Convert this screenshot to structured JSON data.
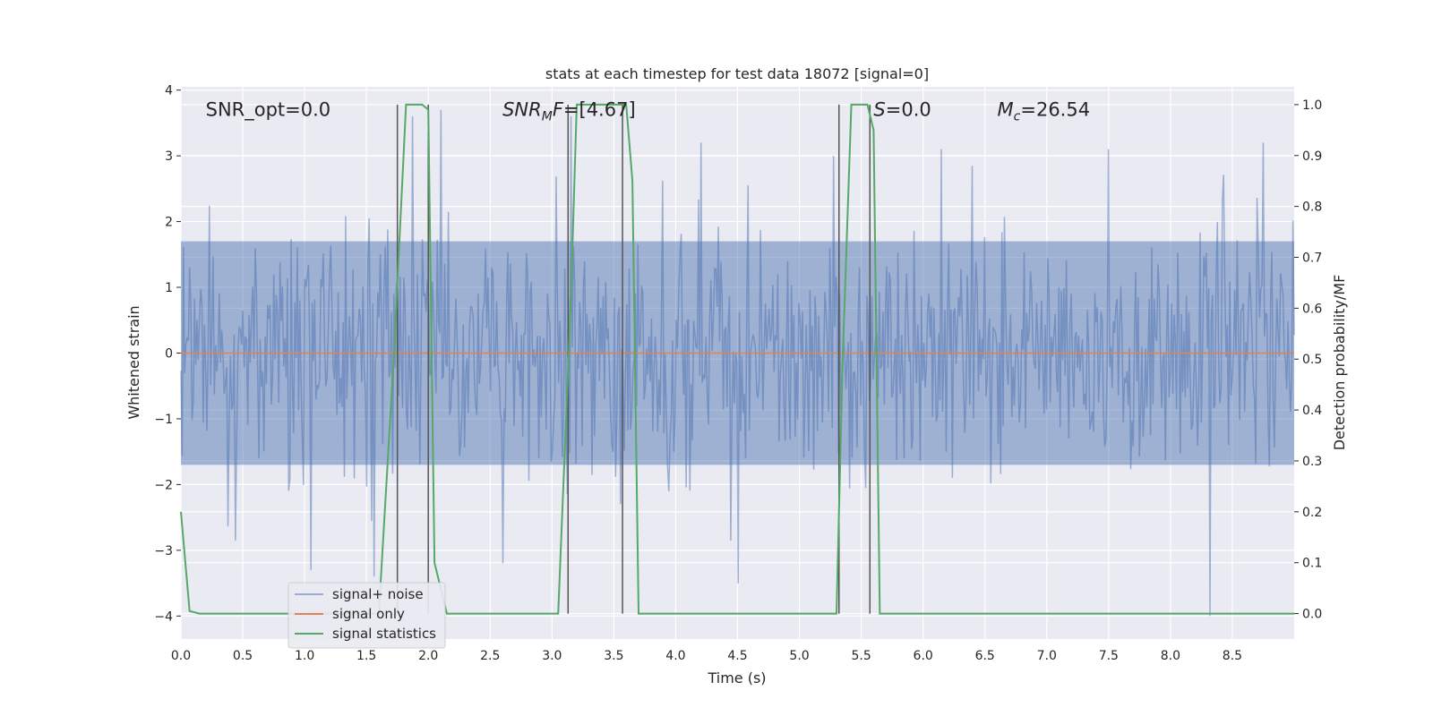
{
  "chart_data": {
    "type": "line",
    "title": "stats at each timestep for test data 18072 [signal=0]",
    "xlabel": "Time (s)",
    "ylabel": "Whitened strain",
    "y2label": "Detection probability/MF",
    "xlim": [
      0,
      9.0
    ],
    "ylim": [
      -4.35,
      4.05
    ],
    "y2lim": [
      -0.05,
      1.035
    ],
    "x_ticks": [
      "0.0",
      "0.5",
      "1.0",
      "1.5",
      "2.0",
      "2.5",
      "3.0",
      "3.5",
      "4.0",
      "4.5",
      "5.0",
      "5.5",
      "6.0",
      "6.5",
      "7.0",
      "7.5",
      "8.0",
      "8.5"
    ],
    "y_ticks": [
      "−4",
      "−3",
      "−2",
      "−1",
      "0",
      "1",
      "2",
      "3",
      "4"
    ],
    "y2_ticks": [
      "0.0",
      "0.1",
      "0.2",
      "0.3",
      "0.4",
      "0.5",
      "0.6",
      "0.7",
      "0.8",
      "0.9",
      "1.0"
    ],
    "grid": true,
    "legend_position": "lower-left",
    "annotations": [
      {
        "x": 0.2,
        "y": 3.7,
        "text": "SNR_opt=0.0",
        "html": "SNR_opt=0.0"
      },
      {
        "x": 2.6,
        "y": 3.7,
        "text": "SNR_MF=[4.67]",
        "html": "<tspan font-style='italic'>SNR</tspan><tspan font-style='italic' font-size='14' dy='5'>M</tspan><tspan font-style='italic' dy='-5'>F</tspan>=[4.67]"
      },
      {
        "x": 5.6,
        "y": 3.7,
        "text": "S=0.0",
        "html": "<tspan font-style='italic'>S</tspan>=0.0"
      },
      {
        "x": 6.6,
        "y": 3.7,
        "text": "M_c=26.54",
        "html": "<tspan font-style='italic'>M</tspan><tspan font-style='italic' font-size='14' dy='5'>c</tspan><tspan dy='-5'>=26.54</tspan>"
      }
    ],
    "series": [
      {
        "name": "signal+ noise",
        "color": "#4c72b0",
        "alpha": 0.5,
        "axis": "left",
        "kind": "noise",
        "x_start": 0,
        "x_end": 9.0,
        "samples": 900,
        "envelope_core": [
          -1.7,
          1.7
        ],
        "spikes": [
          [
            1.05,
            -3.3
          ],
          [
            1.56,
            -3.4
          ],
          [
            1.87,
            3.6
          ],
          [
            2.1,
            3.7
          ],
          [
            2.6,
            -3.2
          ],
          [
            3.15,
            3.6
          ],
          [
            3.55,
            -2.3
          ],
          [
            4.2,
            3.2
          ],
          [
            4.5,
            -3.5
          ],
          [
            5.28,
            3.0
          ],
          [
            6.15,
            3.1
          ],
          [
            7.5,
            3.1
          ],
          [
            8.32,
            -4.0
          ],
          [
            8.75,
            3.2
          ]
        ]
      },
      {
        "name": "signal only",
        "color": "#dd8452",
        "axis": "left",
        "x": [
          0,
          9.0
        ],
        "y": [
          0,
          0
        ]
      },
      {
        "name": "signal statistics",
        "color": "#55a868",
        "axis": "right",
        "x": [
          0,
          0.07,
          0.15,
          1.6,
          1.72,
          1.82,
          1.95,
          2.0,
          2.05,
          2.15,
          3.05,
          3.15,
          3.2,
          3.6,
          3.65,
          3.7,
          5.3,
          5.35,
          5.42,
          5.55,
          5.6,
          5.65,
          9.0
        ],
        "y": [
          0.2,
          0.005,
          0.0,
          0.0,
          0.5,
          1.0,
          1.0,
          0.99,
          0.1,
          0.0,
          0.0,
          0.6,
          1.0,
          1.0,
          0.85,
          0.0,
          0.0,
          0.5,
          1.0,
          1.0,
          0.95,
          0.0,
          0.0
        ]
      }
    ],
    "vlines": [
      {
        "x": 1.75,
        "ymin": 0.0,
        "ymax": 1.0
      },
      {
        "x": 2.0,
        "ymin": 0.0,
        "ymax": 1.0
      },
      {
        "x": 3.13,
        "ymin": 0.0,
        "ymax": 1.0
      },
      {
        "x": 3.57,
        "ymin": 0.0,
        "ymax": 1.0
      },
      {
        "x": 5.32,
        "ymin": 0.0,
        "ymax": 1.0
      },
      {
        "x": 5.57,
        "ymin": 0.0,
        "ymax": 1.0
      }
    ]
  },
  "style": {
    "plot_bg": "#eaeaf2",
    "grid_color": "#ffffff",
    "vline_color": "#555555"
  }
}
